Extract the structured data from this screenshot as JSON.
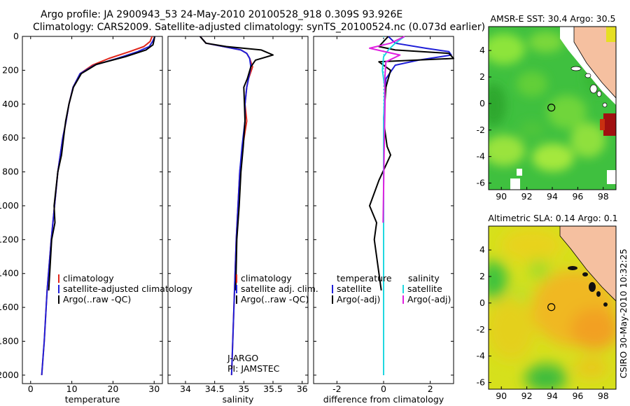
{
  "header": {
    "line1": "Argo profile: JA 2900943_53 24-May-2010 20100528_918 0.309S 93.926E",
    "line2": "Climatology: CARS2009. Satellite-adjusted climatology: synTS_20100524.nc (0.073d earlier)"
  },
  "side_label": "CSIRO 30-May-2010 10:32:25",
  "colors": {
    "climatology": "#e0261b",
    "satellite": "#1f1fd8",
    "argo": "#000000",
    "argo_adj_s": "#e020e0",
    "sat_s": "#20d8e0"
  },
  "chart_data": [
    {
      "id": "temperature",
      "type": "line",
      "xlabel": "temperature",
      "ylabel": "",
      "xlim": [
        -2,
        32
      ],
      "ylim": [
        2050,
        0
      ],
      "y_inverted": true,
      "xticks": [
        0,
        10,
        20,
        30
      ],
      "yticks": [
        0,
        200,
        400,
        600,
        800,
        1000,
        1200,
        1400,
        1600,
        1800,
        2000
      ],
      "legend": [
        "climatology",
        "satellite-adjusted climatology",
        "Argo(..raw -QC)"
      ],
      "series": [
        {
          "name": "climatology",
          "color": "#e0261b",
          "x": [
            29.5,
            29,
            27.5,
            24,
            19,
            15,
            12,
            10.3,
            9.3,
            8.6,
            7.8,
            6.6,
            5.8,
            5,
            4,
            3.3,
            2.7
          ],
          "y": [
            0,
            30,
            60,
            90,
            130,
            170,
            220,
            300,
            400,
            500,
            600,
            800,
            1000,
            1200,
            1500,
            1800,
            2000
          ]
        },
        {
          "name": "satellite-adjusted climatology",
          "color": "#1f1fd8",
          "x": [
            30.2,
            29.6,
            28.8,
            26,
            21,
            15.5,
            12,
            10.3,
            9.3,
            8.6,
            7.8,
            6.6,
            5.8,
            5,
            4,
            3.3,
            2.7
          ],
          "y": [
            0,
            30,
            60,
            90,
            130,
            170,
            220,
            300,
            400,
            500,
            600,
            800,
            1000,
            1200,
            1500,
            1800,
            2000
          ]
        },
        {
          "name": "Argo(..raw -QC)",
          "color": "#000000",
          "x": [
            30.1,
            30,
            29.7,
            28,
            23,
            16,
            12.3,
            10.4,
            9.3,
            8.5,
            8,
            7.5,
            6.6,
            5.7,
            5.9,
            5.1,
            4.4
          ],
          "y": [
            0,
            20,
            50,
            80,
            120,
            165,
            220,
            300,
            400,
            500,
            600,
            700,
            800,
            1000,
            1100,
            1200,
            1500
          ]
        }
      ]
    },
    {
      "id": "salinity",
      "type": "line",
      "xlabel": "salinity",
      "ylabel": "",
      "xlim": [
        33.7,
        36.1
      ],
      "ylim": [
        2050,
        0
      ],
      "y_inverted": true,
      "xticks": [
        34,
        34.5,
        35,
        35.5,
        36
      ],
      "yticks": [
        0,
        200,
        400,
        600,
        800,
        1000,
        1200,
        1400,
        1600,
        1800,
        2000
      ],
      "legend": [
        "climatology",
        "satellite adj. clim.",
        "Argo(..raw -QC)"
      ],
      "annotation": [
        "J-ARGO",
        "PI: JAMSTEC"
      ],
      "series": [
        {
          "name": "climatology",
          "color": "#e0261b",
          "x": [
            34.25,
            34.35,
            34.65,
            34.95,
            35.05,
            35.1,
            35.15,
            35.08,
            35.05,
            35.02,
            35.05,
            34.98,
            34.93,
            34.9,
            34.87,
            34.84,
            34.81,
            34.79
          ],
          "y": [
            0,
            40,
            60,
            80,
            100,
            130,
            180,
            250,
            300,
            400,
            500,
            650,
            800,
            1000,
            1200,
            1500,
            1800,
            2000
          ]
        },
        {
          "name": "satellite adj. clim.",
          "color": "#1f1fd8",
          "x": [
            34.25,
            34.35,
            34.65,
            34.95,
            35.05,
            35.1,
            35.12,
            35.08,
            35.05,
            35.02,
            35.02,
            34.97,
            34.93,
            34.9,
            34.87,
            34.84,
            34.81,
            34.79
          ],
          "y": [
            0,
            40,
            60,
            80,
            100,
            130,
            180,
            250,
            300,
            400,
            500,
            650,
            800,
            1000,
            1200,
            1500,
            1800,
            2000
          ]
        },
        {
          "name": "Argo(..raw -QC)",
          "color": "#000000",
          "x": [
            34.25,
            34.35,
            34.7,
            35.3,
            35.5,
            35.2,
            35.12,
            35.06,
            35,
            35.01,
            35.02,
            34.99,
            34.95,
            34.92,
            34.88,
            34.86
          ],
          "y": [
            0,
            40,
            60,
            80,
            110,
            140,
            180,
            250,
            300,
            400,
            500,
            650,
            800,
            1000,
            1200,
            1500
          ]
        }
      ]
    },
    {
      "id": "difference",
      "type": "line",
      "xlabel": "difference from climatology",
      "ylabel": "",
      "xlim": [
        -3,
        3
      ],
      "ylim": [
        2050,
        0
      ],
      "y_inverted": true,
      "xticks": [
        -2,
        0,
        2
      ],
      "yticks": [
        0,
        200,
        400,
        600,
        800,
        1000,
        1200,
        1400,
        1600,
        1800,
        2000
      ],
      "legend_temperature_title": "temperature",
      "legend_salinity_title": "salinity",
      "legend": [
        "satellite",
        "Argo(-adj)",
        "satellite",
        "Argo(-adj)"
      ],
      "series": [
        {
          "name": "temperature satellite",
          "color": "#1f1fd8",
          "x": [
            0.2,
            0.5,
            1.8,
            2.8,
            2.9,
            1.5,
            0.5,
            0.1,
            0.05,
            0,
            0,
            0,
            0,
            0,
            0
          ],
          "y": [
            0,
            40,
            70,
            90,
            110,
            140,
            170,
            250,
            350,
            500,
            800,
            1100,
            1400,
            1700,
            2000
          ]
        },
        {
          "name": "temperature Argo(-adj)",
          "color": "#000000",
          "x": [
            0.2,
            -0.2,
            0.5,
            2.8,
            3,
            -0.2,
            0.3,
            0.1,
            0,
            0.15,
            0.3,
            -0.2,
            -0.6,
            -0.3,
            -0.4,
            -0.1
          ],
          "y": [
            0,
            60,
            80,
            100,
            130,
            150,
            200,
            300,
            500,
            650,
            700,
            850,
            1000,
            1100,
            1200,
            1500
          ]
        },
        {
          "name": "salinity satellite",
          "color": "#20d8e0",
          "x": [
            0.9,
            0.5,
            0.2,
            0,
            -0.05,
            0.05,
            0,
            0,
            0,
            0,
            0,
            0,
            0
          ],
          "y": [
            0,
            40,
            80,
            120,
            200,
            300,
            500,
            800,
            1100,
            1400,
            1600,
            1800,
            2000
          ]
        },
        {
          "name": "salinity Argo(-adj)",
          "color": "#e020e0",
          "x": [
            0.9,
            0.3,
            -0.6,
            0.7,
            0.1,
            0.05,
            0.06,
            0.02,
            0,
            -0.02
          ],
          "y": [
            0,
            40,
            70,
            110,
            150,
            250,
            400,
            700,
            900,
            1100
          ]
        }
      ]
    },
    {
      "id": "sst_map",
      "type": "heatmap",
      "title": "AMSR-E SST: 30.4 Argo: 30.5",
      "xlim": [
        89,
        99
      ],
      "ylim": [
        -6.5,
        5.8
      ],
      "xticks": [
        90,
        92,
        94,
        96,
        98
      ],
      "yticks": [
        -6,
        -4,
        -2,
        0,
        2,
        4
      ],
      "argo_position": [
        93.926,
        -0.309
      ]
    },
    {
      "id": "sla_map",
      "type": "heatmap",
      "title": "Altimetric SLA: 0.14 Argo: 0.1",
      "xlim": [
        89,
        99
      ],
      "ylim": [
        -6.5,
        5.8
      ],
      "xticks": [
        90,
        92,
        94,
        96,
        98
      ],
      "yticks": [
        -6,
        -4,
        -2,
        0,
        2,
        4
      ],
      "argo_position": [
        93.926,
        -0.309
      ]
    }
  ]
}
